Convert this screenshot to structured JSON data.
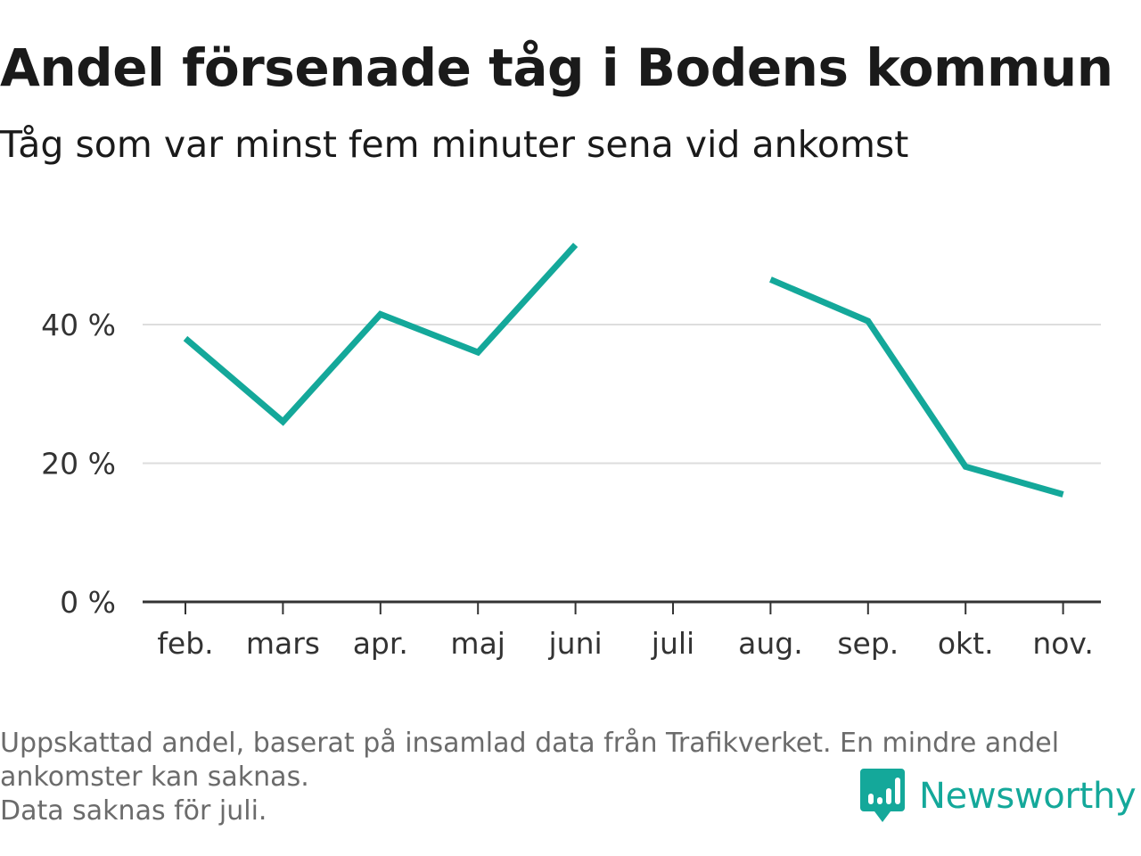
{
  "header": {
    "title": "Andel försenade tåg i Bodens kommun",
    "subtitle": "Tåg som var minst fem minuter sena vid ankomst"
  },
  "chart_data": {
    "type": "line",
    "categories": [
      "feb.",
      "mars",
      "apr.",
      "maj",
      "juni",
      "juli",
      "aug.",
      "sep.",
      "okt.",
      "nov."
    ],
    "series": [
      {
        "values": [
          38,
          26,
          41.5,
          36,
          51.5,
          null,
          46.5,
          40.5,
          19.5,
          15.5
        ]
      }
    ],
    "yticks": [
      0,
      20,
      40
    ],
    "ytick_labels": [
      "0 %",
      "20 %",
      "40 %"
    ],
    "ylim": [
      0,
      55
    ],
    "grid": true,
    "colors": {
      "line": "#14a89a",
      "grid": "#dddddd",
      "axis": "#333333"
    }
  },
  "footer": {
    "note_line1": "Uppskattad andel, baserat på insamlad data från Trafikverket. En mindre andel",
    "note_line2": "ankomster kan saknas.",
    "note_line3": "Data saknas för juli.",
    "brand": "Newsworthy"
  }
}
